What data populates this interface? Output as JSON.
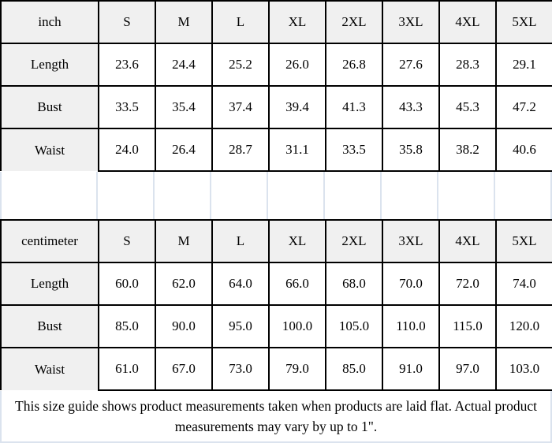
{
  "colors": {
    "header_cell_bg": "#f0f0f0",
    "table_border": "#000000",
    "light_grid_line": "#dbe3ee",
    "text": "#000000",
    "background": "#ffffff"
  },
  "chart_data": [
    {
      "type": "table",
      "unit": "inch",
      "header": [
        "inch",
        "S",
        "M",
        "L",
        "XL",
        "2XL",
        "3XL",
        "4XL",
        "5XL"
      ],
      "rows": [
        {
          "label": "Length",
          "values": [
            "23.6",
            "24.4",
            "25.2",
            "26.0",
            "26.8",
            "27.6",
            "28.3",
            "29.1"
          ]
        },
        {
          "label": "Bust",
          "values": [
            "33.5",
            "35.4",
            "37.4",
            "39.4",
            "41.3",
            "43.3",
            "45.3",
            "47.2"
          ]
        },
        {
          "label": "Waist",
          "values": [
            "24.0",
            "26.4",
            "28.7",
            "31.1",
            "33.5",
            "35.8",
            "38.2",
            "40.6"
          ]
        }
      ]
    },
    {
      "type": "table",
      "unit": "centimeter",
      "header": [
        "centimeter",
        "S",
        "M",
        "L",
        "XL",
        "2XL",
        "3XL",
        "4XL",
        "5XL"
      ],
      "rows": [
        {
          "label": "Length",
          "values": [
            "60.0",
            "62.0",
            "64.0",
            "66.0",
            "68.0",
            "70.0",
            "72.0",
            "74.0"
          ]
        },
        {
          "label": "Bust",
          "values": [
            "85.0",
            "90.0",
            "95.0",
            "100.0",
            "105.0",
            "110.0",
            "115.0",
            "120.0"
          ]
        },
        {
          "label": "Waist",
          "values": [
            "61.0",
            "67.0",
            "73.0",
            "79.0",
            "85.0",
            "91.0",
            "97.0",
            "103.0"
          ]
        }
      ]
    }
  ],
  "footer": {
    "note_line1": "This size guide shows product measurements taken when products are laid flat. Actual product",
    "note_line2": "measurements may vary by up to 1\"."
  }
}
